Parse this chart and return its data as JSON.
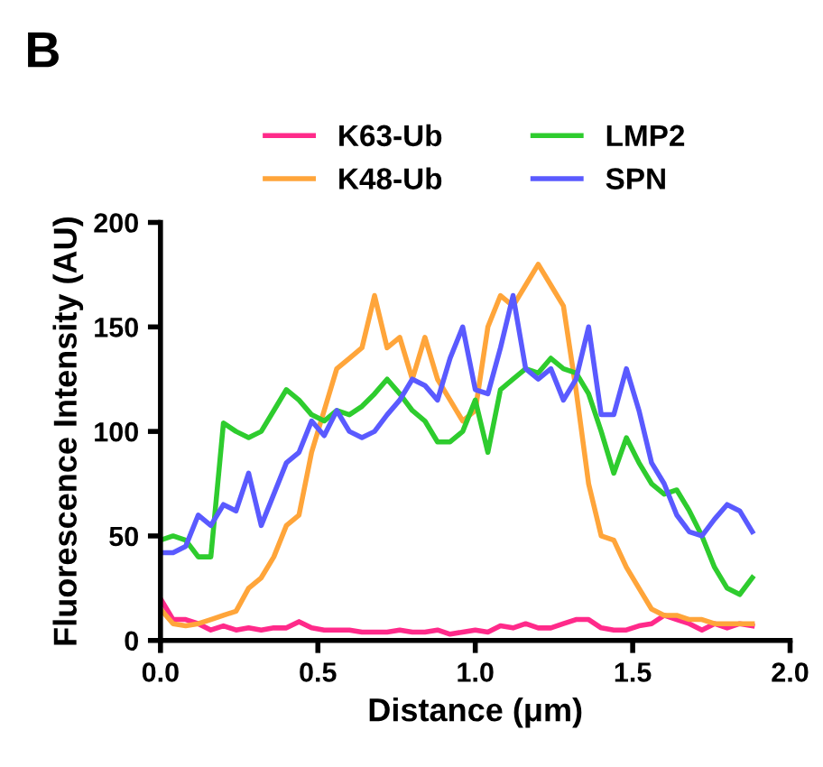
{
  "chart_data": {
    "type": "line",
    "title": "B",
    "xlabel": "Distance (μm)",
    "ylabel": "Fluorescence Intensity (AU)",
    "x": [
      0,
      0.04,
      0.08,
      0.12,
      0.16,
      0.2,
      0.24,
      0.28,
      0.32,
      0.36,
      0.4,
      0.44,
      0.48,
      0.52,
      0.56,
      0.6,
      0.64,
      0.68,
      0.72,
      0.76,
      0.8,
      0.84,
      0.88,
      0.92,
      0.96,
      1.0,
      1.04,
      1.08,
      1.12,
      1.16,
      1.2,
      1.24,
      1.28,
      1.32,
      1.36,
      1.4,
      1.44,
      1.48,
      1.52,
      1.56,
      1.6,
      1.64,
      1.68,
      1.72,
      1.76,
      1.8,
      1.84,
      1.88
    ],
    "series": [
      {
        "name": "K63-Ub",
        "color": "#ff2a8a",
        "values": [
          20,
          10,
          10,
          8,
          5,
          7,
          5,
          6,
          5,
          6,
          6,
          9,
          6,
          5,
          5,
          5,
          4,
          4,
          4,
          5,
          4,
          4,
          5,
          3,
          4,
          5,
          4,
          7,
          6,
          8,
          6,
          6,
          8,
          10,
          10,
          6,
          5,
          5,
          7,
          8,
          12,
          10,
          8,
          5,
          8,
          6,
          8,
          7
        ]
      },
      {
        "name": "K48-Ub",
        "color": "#ffa53a",
        "values": [
          15,
          8,
          7,
          8,
          10,
          12,
          14,
          25,
          30,
          40,
          55,
          60,
          90,
          110,
          130,
          135,
          140,
          165,
          140,
          145,
          125,
          145,
          125,
          115,
          105,
          110,
          150,
          165,
          160,
          170,
          180,
          170,
          160,
          120,
          75,
          50,
          48,
          35,
          25,
          15,
          12,
          12,
          10,
          10,
          8,
          8,
          8,
          8
        ]
      },
      {
        "name": "LMP2",
        "color": "#2ecc2e",
        "values": [
          48,
          50,
          48,
          40,
          40,
          104,
          100,
          97,
          100,
          110,
          120,
          115,
          108,
          105,
          110,
          108,
          112,
          118,
          125,
          118,
          110,
          105,
          95,
          95,
          100,
          115,
          90,
          120,
          125,
          130,
          128,
          135,
          130,
          128,
          118,
          100,
          80,
          97,
          85,
          75,
          70,
          72,
          62,
          50,
          35,
          25,
          22,
          30
        ]
      },
      {
        "name": "SPN",
        "color": "#5a5aff",
        "values": [
          42,
          42,
          45,
          60,
          55,
          65,
          62,
          80,
          55,
          70,
          85,
          90,
          105,
          98,
          110,
          100,
          97,
          100,
          108,
          115,
          125,
          122,
          115,
          135,
          150,
          120,
          118,
          140,
          165,
          130,
          125,
          130,
          115,
          125,
          150,
          108,
          108,
          130,
          110,
          85,
          75,
          60,
          52,
          50,
          58,
          65,
          62,
          52
        ]
      }
    ],
    "xlim": [
      0,
      2.0
    ],
    "xticks": [
      {
        "value": 0,
        "label": "0.0"
      },
      {
        "value": 0.5,
        "label": "0.5"
      },
      {
        "value": 1.0,
        "label": "1.0"
      },
      {
        "value": 1.5,
        "label": "1.5"
      },
      {
        "value": 2.0,
        "label": "2.0"
      }
    ],
    "ylim": [
      0,
      200
    ],
    "yticks": [
      0,
      50,
      100,
      150,
      200
    ],
    "legend": "top",
    "grid": false
  }
}
